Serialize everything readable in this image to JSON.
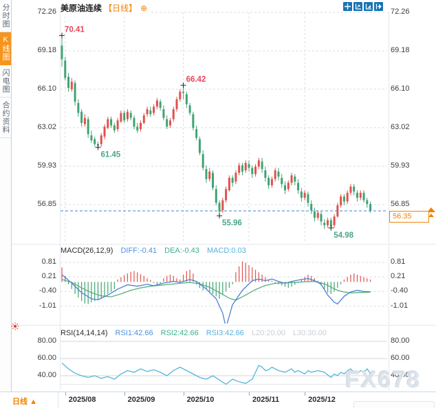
{
  "header": {
    "title": "美原油连续",
    "period_tag": "【日线】",
    "plus_icon": "⊕"
  },
  "sidebar": {
    "items": [
      {
        "label": "分时图",
        "active": false
      },
      {
        "label": "K线图",
        "active": true
      },
      {
        "label": "闪电图",
        "active": false
      },
      {
        "label": "合约资料",
        "active": false
      }
    ]
  },
  "toolbar": {
    "icons": [
      "crosshair-icon",
      "axis-scale-icon",
      "axis-zoom-icon",
      "pane-expand-icon"
    ]
  },
  "current_price": {
    "label": "56.35",
    "value": 56.35
  },
  "macd_header": {
    "title": "MACD(26,12,9)",
    "diff": "DIFF:-0.41",
    "dea": "DEA:-0.43",
    "macd": "MACD:0.03"
  },
  "rsi_header": {
    "title": "RSI(14,14,14)",
    "rsi1": "RSI1:42.66",
    "rsi2": "RSI2:42.66",
    "rsi3": "RSI3:42.66",
    "l20": "L20:20.00",
    "l30": "L30:30.00"
  },
  "bottom": {
    "period": "日线",
    "arrow": "▲",
    "dates": [
      "2025/08",
      "2025/09",
      "2025/10",
      "2025/11",
      "2025/12"
    ]
  },
  "watermark": "FX678",
  "colors": {
    "up": "#e0514b",
    "down": "#3fa372",
    "diff_line": "#4a81d6",
    "dea_line": "#57ad7c",
    "rsi_line": "#52b7d8",
    "accent": "#f08200",
    "price_line": "#3b82d4",
    "grid": "#d8dde2",
    "ann_red": "#e8465a",
    "ann_green": "#4aa687"
  },
  "chart_data": [
    {
      "type": "candlestick",
      "title": "美原油连续 日线",
      "ylim": [
        53.8,
        72.26
      ],
      "y_ticks": [
        72.26,
        69.18,
        66.1,
        63.02,
        59.93,
        56.85
      ],
      "y_tick_labels": [
        "72.26",
        "69.18",
        "66.10",
        "63.02",
        "59.93",
        "56.85"
      ],
      "x_tick_labels": [
        "2025/08",
        "2025/09",
        "2025/10",
        "2025/11",
        "2025/12"
      ],
      "x_tick_candle_index": [
        1,
        19,
        37,
        57,
        74
      ],
      "last_price": 56.35,
      "annotations": [
        {
          "index": 0,
          "at": "high",
          "label": "70.41",
          "color": "red"
        },
        {
          "index": 11,
          "at": "low",
          "label": "61.45",
          "color": "green"
        },
        {
          "index": 37,
          "at": "high",
          "label": "66.42",
          "color": "red"
        },
        {
          "index": 48,
          "at": "low",
          "label": "55.96",
          "color": "green"
        },
        {
          "index": 82,
          "at": "low",
          "label": "54.98",
          "color": "green"
        }
      ],
      "candles": [
        [
          69.6,
          70.41,
          67.9,
          68.5
        ],
        [
          68.4,
          68.7,
          66.8,
          67.0
        ],
        [
          67.1,
          67.4,
          65.9,
          66.2
        ],
        [
          66.1,
          67.0,
          65.9,
          66.7
        ],
        [
          66.6,
          66.8,
          64.8,
          65.1
        ],
        [
          65.0,
          65.3,
          63.9,
          64.2
        ],
        [
          64.3,
          64.5,
          63.1,
          63.4
        ],
        [
          63.3,
          64.1,
          63.1,
          63.8
        ],
        [
          63.7,
          63.9,
          62.2,
          62.5
        ],
        [
          62.4,
          62.8,
          61.8,
          62.0
        ],
        [
          62.1,
          62.3,
          61.5,
          61.7
        ],
        [
          61.7,
          61.9,
          61.45,
          61.6
        ],
        [
          61.7,
          62.6,
          61.5,
          62.4
        ],
        [
          62.3,
          63.3,
          62.1,
          63.1
        ],
        [
          63.0,
          63.9,
          62.9,
          63.7
        ],
        [
          63.7,
          63.9,
          63.0,
          63.2
        ],
        [
          63.2,
          63.4,
          62.6,
          62.8
        ],
        [
          62.9,
          63.8,
          62.7,
          63.6
        ],
        [
          63.5,
          64.4,
          63.4,
          64.2
        ],
        [
          64.2,
          64.4,
          63.4,
          63.6
        ],
        [
          63.7,
          64.5,
          63.5,
          64.3
        ],
        [
          64.2,
          64.4,
          63.6,
          63.8
        ],
        [
          63.8,
          64.0,
          62.9,
          63.1
        ],
        [
          63.1,
          63.4,
          62.6,
          62.8
        ],
        [
          62.9,
          63.6,
          62.7,
          63.4
        ],
        [
          63.4,
          64.2,
          63.3,
          64.0
        ],
        [
          64.1,
          64.7,
          63.9,
          64.5
        ],
        [
          64.4,
          64.7,
          63.9,
          64.1
        ],
        [
          64.2,
          64.9,
          64.0,
          64.7
        ],
        [
          64.7,
          65.4,
          64.5,
          65.2
        ],
        [
          65.1,
          65.3,
          64.4,
          64.6
        ],
        [
          64.5,
          64.8,
          63.6,
          63.8
        ],
        [
          63.7,
          64.0,
          62.9,
          63.1
        ],
        [
          63.2,
          63.8,
          63.0,
          63.6
        ],
        [
          63.7,
          64.7,
          63.5,
          64.5
        ],
        [
          64.5,
          65.5,
          64.3,
          65.3
        ],
        [
          65.3,
          66.1,
          65.1,
          65.9
        ],
        [
          65.9,
          66.42,
          65.3,
          65.8
        ],
        [
          65.7,
          65.9,
          64.6,
          64.9
        ],
        [
          64.8,
          65.0,
          64.0,
          64.2
        ],
        [
          64.1,
          64.3,
          62.8,
          63.0
        ],
        [
          62.9,
          63.2,
          62.0,
          62.2
        ],
        [
          62.1,
          62.3,
          60.8,
          61.0
        ],
        [
          60.9,
          61.2,
          59.6,
          59.8
        ],
        [
          59.7,
          60.0,
          58.6,
          58.9
        ],
        [
          58.9,
          59.8,
          58.7,
          59.5
        ],
        [
          59.4,
          59.6,
          58.0,
          58.2
        ],
        [
          58.1,
          58.4,
          56.8,
          57.0
        ],
        [
          57.0,
          57.2,
          55.96,
          56.3
        ],
        [
          56.4,
          57.4,
          56.2,
          57.2
        ],
        [
          57.2,
          58.3,
          57.0,
          58.1
        ],
        [
          58.0,
          59.2,
          57.9,
          59.0
        ],
        [
          59.0,
          59.2,
          58.3,
          58.6
        ],
        [
          58.7,
          59.6,
          58.5,
          59.4
        ],
        [
          59.4,
          60.2,
          59.2,
          60.0
        ],
        [
          60.0,
          60.2,
          59.2,
          59.5
        ],
        [
          59.6,
          60.4,
          59.4,
          60.2
        ],
        [
          60.1,
          60.4,
          59.5,
          59.8
        ],
        [
          59.8,
          60.0,
          59.0,
          59.3
        ],
        [
          59.3,
          60.1,
          59.1,
          59.9
        ],
        [
          59.9,
          60.6,
          59.7,
          60.4
        ],
        [
          60.3,
          60.6,
          59.4,
          59.7
        ],
        [
          59.6,
          59.9,
          58.7,
          59.0
        ],
        [
          59.0,
          59.2,
          58.1,
          58.4
        ],
        [
          58.4,
          59.1,
          58.2,
          58.9
        ],
        [
          58.9,
          59.8,
          58.7,
          59.6
        ],
        [
          59.5,
          59.8,
          58.8,
          59.1
        ],
        [
          59.0,
          59.3,
          58.2,
          58.5
        ],
        [
          58.4,
          58.7,
          57.7,
          58.0
        ],
        [
          58.1,
          58.8,
          57.9,
          58.6
        ],
        [
          58.6,
          59.4,
          58.4,
          59.2
        ],
        [
          59.1,
          59.3,
          58.4,
          58.7
        ],
        [
          58.6,
          58.9,
          57.7,
          58.0
        ],
        [
          57.9,
          58.2,
          57.1,
          57.4
        ],
        [
          57.4,
          58.0,
          57.2,
          57.8
        ],
        [
          57.7,
          57.9,
          56.7,
          57.0
        ],
        [
          56.9,
          57.2,
          56.1,
          56.4
        ],
        [
          56.3,
          56.6,
          55.5,
          55.8
        ],
        [
          55.8,
          56.4,
          55.6,
          56.2
        ],
        [
          56.1,
          56.3,
          55.2,
          55.5
        ],
        [
          55.4,
          55.7,
          54.9,
          55.2
        ],
        [
          55.2,
          55.8,
          55.0,
          55.6
        ],
        [
          55.6,
          55.8,
          54.98,
          55.1
        ],
        [
          55.2,
          56.1,
          55.0,
          55.9
        ],
        [
          55.9,
          57.0,
          55.8,
          56.8
        ],
        [
          56.8,
          57.7,
          56.6,
          57.5
        ],
        [
          57.5,
          57.7,
          56.8,
          57.1
        ],
        [
          57.1,
          58.0,
          56.9,
          57.8
        ],
        [
          57.8,
          58.5,
          57.6,
          58.3
        ],
        [
          58.3,
          58.5,
          57.6,
          57.9
        ],
        [
          57.8,
          58.0,
          57.1,
          57.4
        ],
        [
          57.4,
          58.0,
          57.2,
          57.8
        ],
        [
          57.8,
          58.0,
          57.0,
          57.2
        ],
        [
          57.2,
          57.4,
          56.6,
          56.9
        ],
        [
          56.9,
          57.1,
          56.2,
          56.35
        ]
      ]
    },
    {
      "type": "bar",
      "title": "MACD(26,12,9)",
      "ylim": [
        -1.6,
        1.0
      ],
      "y_ticks": [
        0.81,
        0.21,
        -0.4,
        -1.01
      ],
      "y_tick_labels": [
        "0.81",
        "0.21",
        "-0.40",
        "-1.01"
      ],
      "readout": {
        "diff": -0.41,
        "dea": -0.43,
        "macd": 0.03
      },
      "histogram": [
        0.6,
        0.25,
        -0.1,
        -0.3,
        -0.5,
        -0.65,
        -0.8,
        -0.9,
        -0.92,
        -0.85,
        -0.8,
        -0.75,
        -0.7,
        -0.6,
        -0.5,
        -0.4,
        -0.3,
        0.1,
        0.2,
        0.28,
        0.35,
        0.42,
        0.45,
        0.4,
        0.32,
        0.25,
        0.15,
        0.08,
        -0.05,
        -0.1,
        -0.06,
        0.15,
        0.25,
        0.3,
        0.25,
        0.15,
        0.1,
        0.3,
        0.45,
        0.5,
        0.35,
        -0.1,
        -0.25,
        -0.35,
        -0.3,
        -0.4,
        -0.5,
        -0.6,
        -0.7,
        -0.55,
        -0.4,
        -0.25,
        -0.1,
        0.4,
        0.65,
        0.85,
        0.8,
        0.7,
        0.6,
        0.5,
        0.4,
        0.3,
        0.2,
        0.1,
        0.05,
        -0.05,
        -0.1,
        -0.15,
        -0.2,
        -0.25,
        -0.2,
        -0.12,
        -0.05,
        0.1,
        0.2,
        0.3,
        0.25,
        0.15,
        0.05,
        -0.15,
        -0.3,
        -0.45,
        -0.5,
        -0.4,
        -0.25,
        -0.1,
        0.1,
        0.2,
        0.3,
        0.35,
        0.3,
        0.25,
        0.2,
        0.15,
        0.1
      ],
      "diff_points": [
        [
          0,
          0.3
        ],
        [
          3,
          -0.05
        ],
        [
          6,
          -0.45
        ],
        [
          9,
          -0.7
        ],
        [
          11,
          -0.75
        ],
        [
          14,
          -0.55
        ],
        [
          17,
          -0.3
        ],
        [
          20,
          -0.12
        ],
        [
          23,
          -0.18
        ],
        [
          26,
          -0.1
        ],
        [
          28,
          -0.16
        ],
        [
          31,
          -0.05
        ],
        [
          34,
          0.02
        ],
        [
          36,
          -0.02
        ],
        [
          39,
          0.1
        ],
        [
          41,
          0.02
        ],
        [
          44,
          -0.3
        ],
        [
          47,
          -0.7
        ],
        [
          49,
          -1.3
        ],
        [
          50,
          -1.9
        ],
        [
          52,
          -0.95
        ],
        [
          55,
          -0.35
        ],
        [
          58,
          0.05
        ],
        [
          60,
          0.12
        ],
        [
          62,
          0.05
        ],
        [
          64,
          0.12
        ],
        [
          66,
          0.02
        ],
        [
          68,
          -0.06
        ],
        [
          70,
          0.02
        ],
        [
          73,
          0.1
        ],
        [
          75,
          0.14
        ],
        [
          77,
          0.05
        ],
        [
          79,
          -0.1
        ],
        [
          81,
          -0.55
        ],
        [
          83,
          -0.85
        ],
        [
          84,
          -0.92
        ],
        [
          86,
          -0.6
        ],
        [
          88,
          -0.42
        ],
        [
          90,
          -0.35
        ],
        [
          92,
          -0.4
        ],
        [
          94,
          -0.41
        ]
      ],
      "dea_points": [
        [
          0,
          0.1
        ],
        [
          3,
          -0.02
        ],
        [
          6,
          -0.25
        ],
        [
          9,
          -0.45
        ],
        [
          12,
          -0.58
        ],
        [
          15,
          -0.62
        ],
        [
          18,
          -0.5
        ],
        [
          21,
          -0.35
        ],
        [
          24,
          -0.25
        ],
        [
          27,
          -0.18
        ],
        [
          30,
          -0.14
        ],
        [
          33,
          -0.1
        ],
        [
          36,
          -0.06
        ],
        [
          39,
          -0.02
        ],
        [
          42,
          -0.08
        ],
        [
          45,
          -0.22
        ],
        [
          48,
          -0.45
        ],
        [
          51,
          -0.68
        ],
        [
          53,
          -0.76
        ],
        [
          56,
          -0.55
        ],
        [
          59,
          -0.32
        ],
        [
          62,
          -0.15
        ],
        [
          65,
          -0.06
        ],
        [
          68,
          -0.04
        ],
        [
          71,
          -0.02
        ],
        [
          74,
          0.0
        ],
        [
          77,
          0.02
        ],
        [
          80,
          -0.08
        ],
        [
          82,
          -0.22
        ],
        [
          84,
          -0.35
        ],
        [
          86,
          -0.42
        ],
        [
          88,
          -0.46
        ],
        [
          91,
          -0.44
        ],
        [
          94,
          -0.43
        ]
      ]
    },
    {
      "type": "line",
      "title": "RSI(14,14,14)",
      "ylim": [
        25,
        90
      ],
      "y_ticks": [
        80,
        60,
        40
      ],
      "y_tick_labels": [
        "80.00",
        "60.00",
        "40.00"
      ],
      "readout": {
        "rsi1": 42.66,
        "rsi2": 42.66,
        "rsi3": 42.66,
        "l20": 20.0,
        "l30": 30.0
      },
      "points": [
        [
          0,
          55
        ],
        [
          2,
          48
        ],
        [
          4,
          43
        ],
        [
          6,
          40
        ],
        [
          8,
          38
        ],
        [
          10,
          40
        ],
        [
          12,
          37
        ],
        [
          14,
          39
        ],
        [
          16,
          36
        ],
        [
          18,
          42
        ],
        [
          20,
          46
        ],
        [
          22,
          44
        ],
        [
          24,
          48
        ],
        [
          26,
          45
        ],
        [
          28,
          47
        ],
        [
          30,
          44
        ],
        [
          32,
          40
        ],
        [
          34,
          46
        ],
        [
          36,
          50
        ],
        [
          38,
          46
        ],
        [
          40,
          42
        ],
        [
          42,
          38
        ],
        [
          44,
          36
        ],
        [
          46,
          40
        ],
        [
          48,
          35
        ],
        [
          50,
          30
        ],
        [
          52,
          36
        ],
        [
          54,
          33
        ],
        [
          56,
          31
        ],
        [
          58,
          36
        ],
        [
          60,
          52
        ],
        [
          61,
          50
        ],
        [
          62,
          46
        ],
        [
          63,
          47
        ],
        [
          64,
          50
        ],
        [
          65,
          48
        ],
        [
          66,
          46
        ],
        [
          68,
          44
        ],
        [
          70,
          48
        ],
        [
          71,
          44
        ],
        [
          72,
          46
        ],
        [
          74,
          42
        ],
        [
          75,
          46
        ],
        [
          76,
          44
        ],
        [
          78,
          46
        ],
        [
          80,
          44
        ],
        [
          82,
          38
        ],
        [
          83,
          42
        ],
        [
          84,
          40
        ],
        [
          85,
          44
        ],
        [
          86,
          42
        ],
        [
          87,
          46
        ],
        [
          88,
          48
        ],
        [
          89,
          44
        ],
        [
          90,
          42
        ],
        [
          91,
          46
        ],
        [
          92,
          44
        ],
        [
          93,
          48
        ],
        [
          94,
          42.66
        ]
      ]
    }
  ]
}
